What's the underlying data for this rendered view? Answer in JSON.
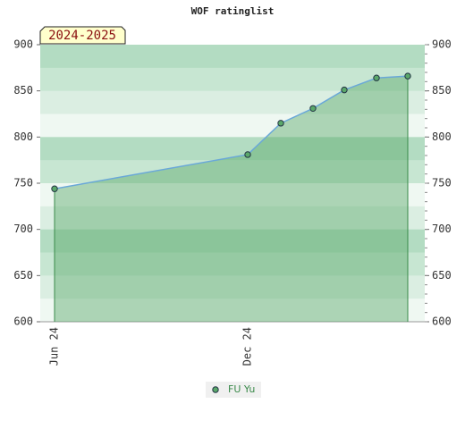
{
  "chart_data": {
    "type": "area",
    "title": "WOF ratinglist",
    "annotation": "2024-2025",
    "categories": [
      "Jun 24",
      "Dec 24",
      null,
      null,
      null,
      null,
      null
    ],
    "series": [
      {
        "name": "FU Yu",
        "color": "#5aa86a",
        "line_color": "#6aa8d8",
        "values": [
          744,
          781,
          815,
          831,
          851,
          864,
          866
        ]
      }
    ],
    "ylim": [
      600,
      900
    ],
    "yticks": [
      600,
      650,
      700,
      750,
      800,
      850,
      900
    ],
    "y2lim": [
      600,
      900
    ],
    "y2ticks": [
      600,
      650,
      700,
      750,
      800,
      850,
      900
    ]
  }
}
